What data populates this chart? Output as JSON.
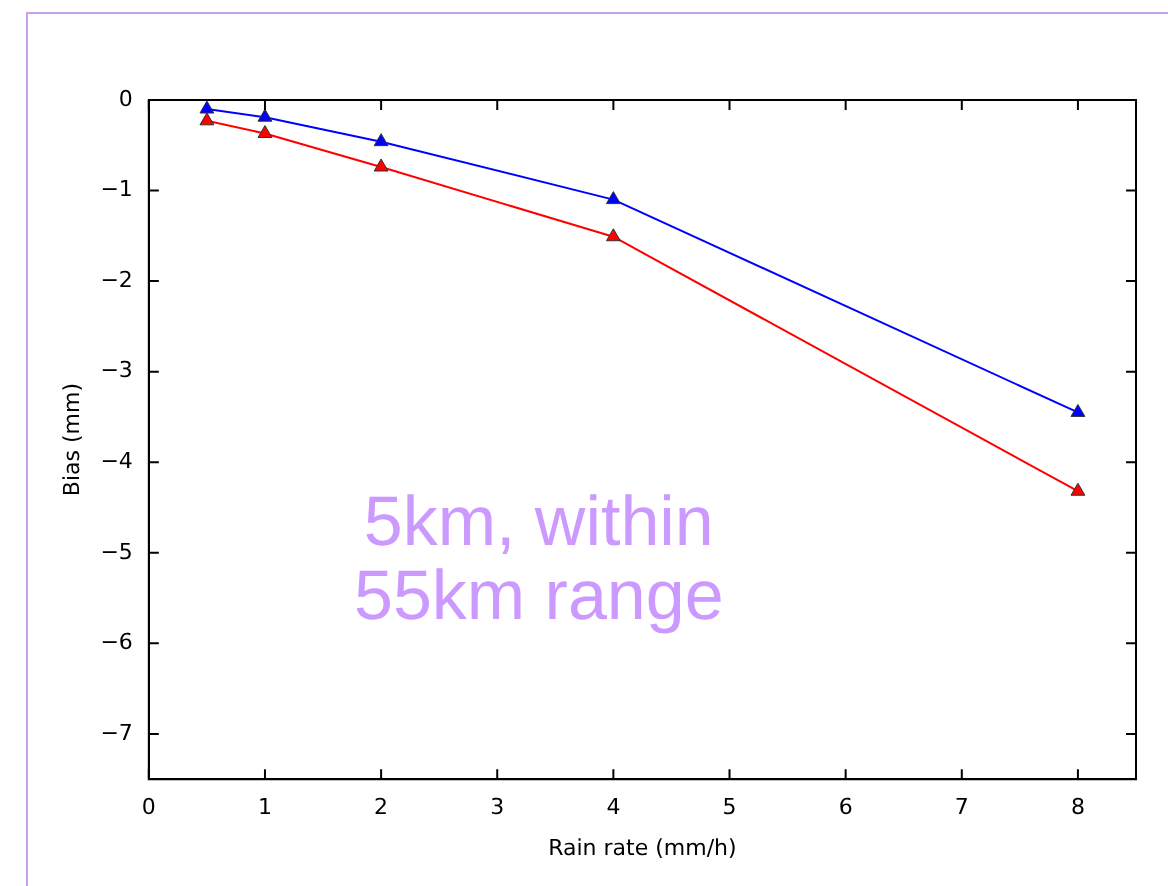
{
  "chart_data": {
    "type": "line",
    "xlabel": "Rain rate (mm/h)",
    "ylabel": "Bias (mm)",
    "x": [
      0.5,
      1,
      2,
      4,
      8
    ],
    "series": [
      {
        "color": "#0000ff",
        "values": [
          -0.1,
          -0.19,
          -0.46,
          -1.1,
          -3.45
        ]
      },
      {
        "color": "#ff0000",
        "values": [
          -0.23,
          -0.37,
          -0.74,
          -1.51,
          -4.32
        ]
      }
    ],
    "xlim": [
      0,
      8.5
    ],
    "xticks": [
      0,
      1,
      2,
      3,
      4,
      5,
      6,
      7,
      8
    ],
    "ylim": [
      -7.5,
      0
    ],
    "yticks": [
      {
        "value": -7,
        "label": "−7"
      },
      {
        "value": -6,
        "label": "−6"
      },
      {
        "value": -5,
        "label": "−5"
      },
      {
        "value": -4,
        "label": "−4"
      },
      {
        "value": -3,
        "label": "−3"
      },
      {
        "value": -2,
        "label": "−2"
      },
      {
        "value": -1,
        "label": "−1"
      },
      0
    ],
    "marker": "triangle",
    "grid": false,
    "legend": false,
    "annotations": [
      "5km, within\n55km range"
    ]
  }
}
